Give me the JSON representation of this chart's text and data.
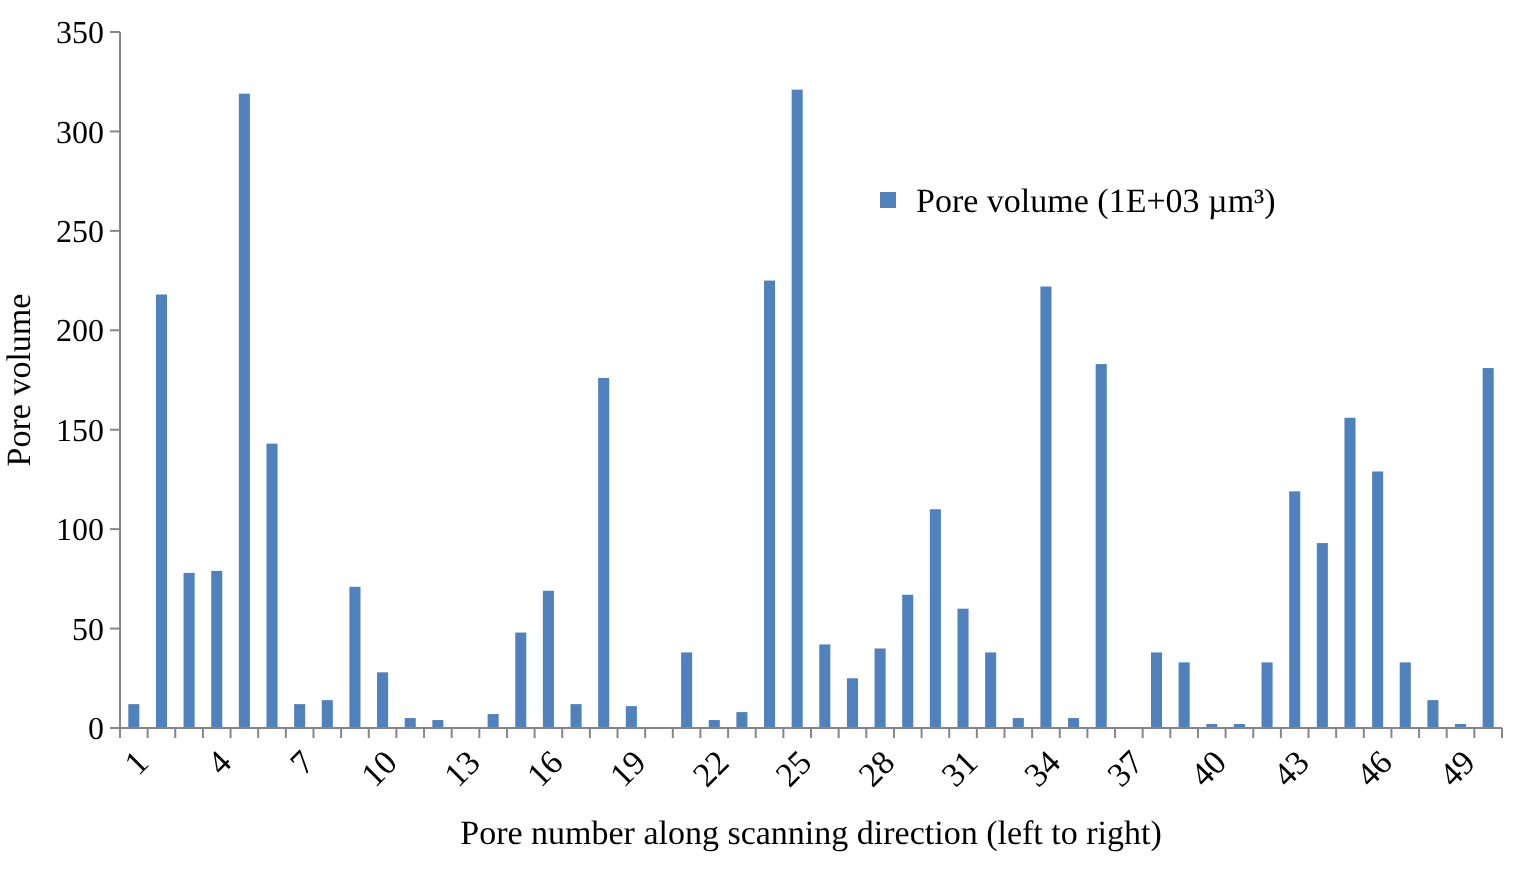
{
  "chart_data": {
    "type": "bar",
    "xlabel": "Pore number along scanning direction (left to right)",
    "ylabel": "Pore volume",
    "categories": [
      "1",
      null,
      null,
      "4",
      null,
      null,
      "7",
      null,
      null,
      "10",
      null,
      null,
      "13",
      null,
      null,
      "16",
      null,
      null,
      "19",
      null,
      null,
      "22",
      null,
      null,
      "25",
      null,
      null,
      "28",
      null,
      null,
      "31",
      null,
      null,
      "34",
      null,
      null,
      "37",
      null,
      null,
      "40",
      null,
      null,
      "43",
      null,
      null,
      "46",
      null,
      null,
      "49",
      null
    ],
    "series": [
      {
        "name": "Pore volume (1E+03 µm³)",
        "color": "#4f81bd",
        "values": [
          12,
          218,
          78,
          79,
          319,
          143,
          12,
          14,
          71,
          28,
          5,
          4,
          0,
          7,
          48,
          69,
          12,
          176,
          11,
          0,
          38,
          4,
          8,
          225,
          321,
          42,
          25,
          40,
          67,
          110,
          60,
          38,
          5,
          222,
          5,
          183,
          0,
          38,
          33,
          2,
          2,
          33,
          119,
          93,
          156,
          129,
          33,
          14,
          2,
          181
        ]
      }
    ],
    "ylim": [
      0,
      350
    ],
    "yticks": [
      0,
      50,
      100,
      150,
      200,
      250,
      300,
      350
    ],
    "grid": false,
    "legend": "top right"
  }
}
